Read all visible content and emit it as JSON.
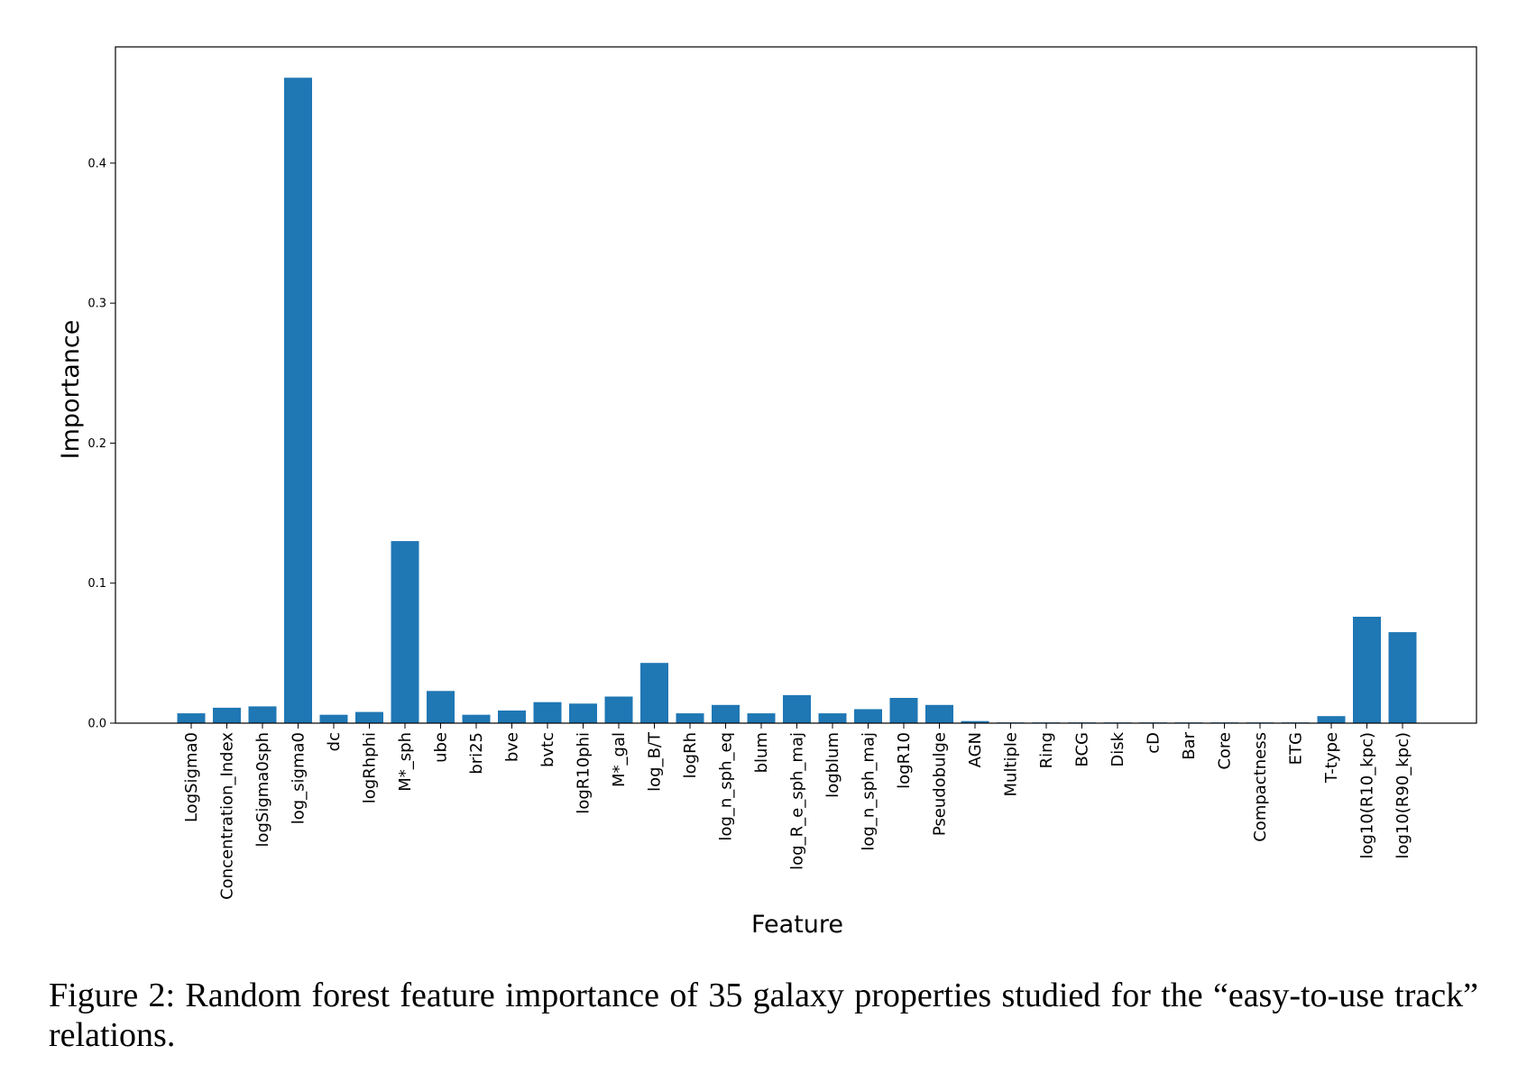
{
  "caption": "Figure 2: Random forest feature importance of 35 galaxy properties studied for the “easy-to-use track” relations.",
  "colors": {
    "bar": "#1f77b4",
    "axis": "#000000",
    "background": "#ffffff"
  },
  "chart_data": {
    "type": "bar",
    "title": "",
    "xlabel": "Feature",
    "ylabel": "Importance",
    "ylim": [
      0,
      0.483
    ],
    "yticks": [
      0.0,
      0.1,
      0.2,
      0.3,
      0.4
    ],
    "ytick_labels": [
      "0.0",
      "0.1",
      "0.2",
      "0.3",
      "0.4"
    ],
    "grid": false,
    "legend": "none",
    "categories": [
      "LogSigma0",
      "Concentration_Index",
      "logSigma0sph",
      "log_sigma0",
      "dc",
      "logRhphi",
      "M*_sph",
      "ube",
      "bri25",
      "bve",
      "bvtc",
      "logR10phi",
      "M*_gal",
      "log_B/T",
      "logRh",
      "log_n_sph_eq",
      "blum",
      "log_R_e_sph_maj",
      "logblum",
      "log_n_sph_maj",
      "logR10",
      "Pseudobulge",
      "AGN",
      "Multiple",
      "Ring",
      "BCG",
      "Disk",
      "cD",
      "Bar",
      "Core",
      "Compactness",
      "ETG",
      "T-type",
      "log10(R10_kpc)",
      "log10(R90_kpc)"
    ],
    "values": [
      0.007,
      0.011,
      0.012,
      0.461,
      0.006,
      0.008,
      0.13,
      0.023,
      0.006,
      0.009,
      0.015,
      0.014,
      0.019,
      0.043,
      0.007,
      0.013,
      0.007,
      0.02,
      0.007,
      0.01,
      0.018,
      0.013,
      0.0015,
      0.0005,
      0.0005,
      0.0005,
      0.0005,
      0.0005,
      0.0005,
      0.0005,
      0.0005,
      0.0005,
      0.005,
      0.076,
      0.065
    ]
  }
}
